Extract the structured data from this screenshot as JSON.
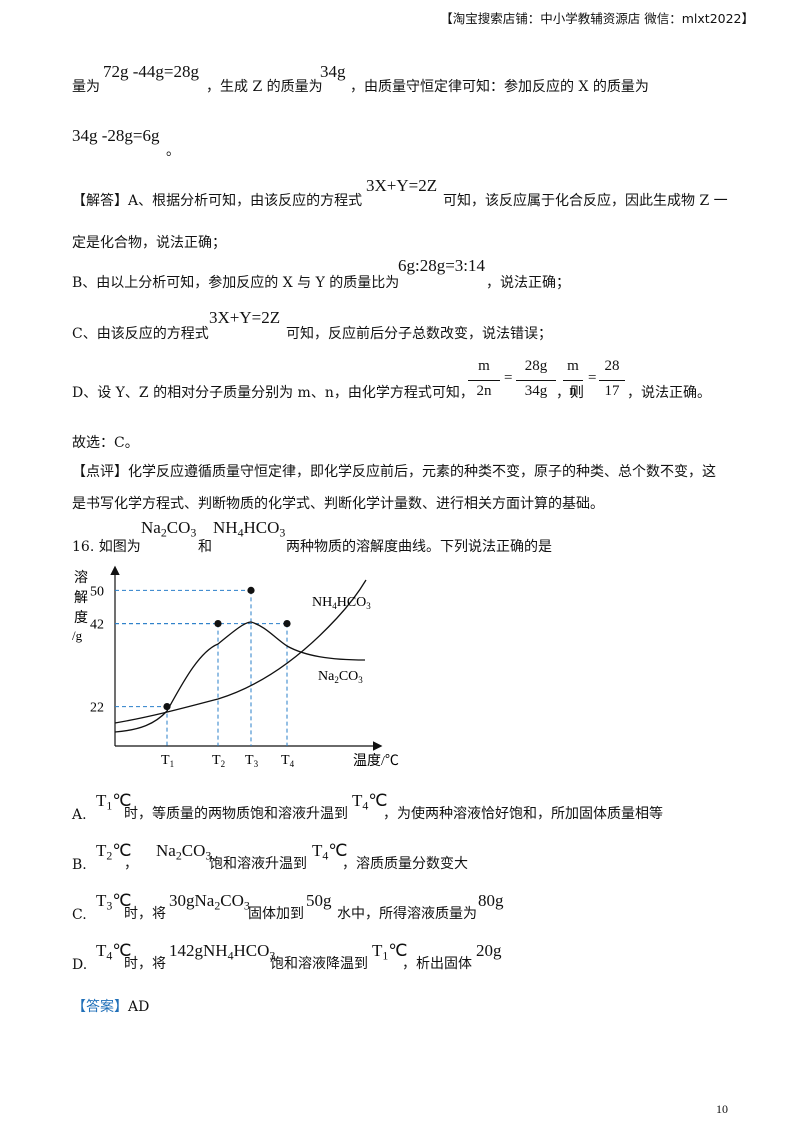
{
  "header": {
    "text": "【淘宝搜索店铺：中小学教辅资源店  微信：mlxt2022】"
  },
  "analysis": {
    "l1_pre": "量为",
    "l1_f1": "72g -44g=28g",
    "l1_mid": "，生成 Z 的质量为",
    "l1_f2": "34g",
    "l1_post": "，由质量守恒定律可知：参加反应的 X 的质量为",
    "l2_f": "34g -28g=6g",
    "l2_post": "。"
  },
  "solution": {
    "a_pre": "【解答】A、根据分析可知，由该反应的方程式",
    "a_eq": "3X+Y=2Z",
    "a_post": "可知，该反应属于化合反应，因此生成物 Z 一",
    "a_cont": "定是化合物，说法正确；",
    "b_pre": "B、由以上分析可知，参加反应的 X 与 Y 的质量比为",
    "b_eq": "6g:28g=3:14",
    "b_post": "，说法正确；",
    "c_pre": "C、由该反应的方程式",
    "c_eq": "3X+Y=2Z",
    "c_post": "可知，反应前后分子总数改变，说法错误；",
    "d_pre": "D、设 Y、Z 的相对分子质量分别为 m、n，由化学方程式可知，",
    "d_f1_num": "m",
    "d_f1_den": "2n",
    "d_eq": "=",
    "d_f2_num": "28g",
    "d_f2_den": "34g",
    "d_mid": "，则",
    "d_f3_num": "m",
    "d_f3_den": "n",
    "d_eq2": "=",
    "d_f4_num": "28",
    "d_f4_den": "17",
    "d_post": "，说法正确。",
    "choice": "故选：C。",
    "comment_tag": "【点评】",
    "comment_1": "化学反应遵循质量守恒定律，即化学反应前后，元素的种类不变，原子的种类、总个数不变，这",
    "comment_2": "是书写化学方程式、判断物质的化学式、判断化学计量数、进行相关方面计算的基础。"
  },
  "question": {
    "num": "16. 如图为",
    "s1": "Na",
    "s1_sub": "2",
    "s1_tail": "CO",
    "s1_sub2": "3",
    "and": "和",
    "s2": "NH",
    "s2_sub": "4",
    "s2_tail": "HCO",
    "s2_sub2": "3",
    "post": "两种物质的溶解度曲线。下列说法正确的是"
  },
  "chart_data": {
    "type": "line",
    "ylabel_chars": [
      "溶",
      "解",
      "度"
    ],
    "yunit": "/g",
    "xlabel": "温度/℃",
    "yticks": [
      22,
      42,
      50
    ],
    "xticks": [
      "T1",
      "T2",
      "T3",
      "T4"
    ],
    "series": [
      {
        "name": "NH4HCO3",
        "label_main": "NH",
        "label_sub": "4",
        "label_tail": "HCO",
        "label_sub2": "3"
      },
      {
        "name": "Na2CO3",
        "label_main": "Na",
        "label_sub": "2",
        "label_tail": "CO",
        "label_sub2": "3"
      }
    ],
    "points": [
      {
        "x": "T1",
        "y": 22
      },
      {
        "x": "T2",
        "y": 42
      },
      {
        "x": "T3",
        "y": 50
      },
      {
        "x": "T4",
        "y": 42
      }
    ]
  },
  "options": [
    {
      "letter": "A.",
      "t": "T",
      "tsub": "1",
      "deg": "℃",
      "a": "时，等质量的两物质饱和溶液升温到",
      "t2": "T",
      "t2sub": "4",
      "deg2": "℃",
      "b": "，为使两种溶液恰好饱和，所加固体质量相等"
    },
    {
      "letter": "B.",
      "t": "T",
      "tsub": "2",
      "deg": "℃",
      "a": "，",
      "chem": "Na",
      "chem_sub": "2",
      "chem_tail": "CO",
      "chem_sub2": "3",
      "c": "饱和溶液升温到",
      "t2": "T",
      "t2sub": "4",
      "deg2": "℃",
      "b": "，溶质质量分数变大"
    },
    {
      "letter": "C.",
      "t": "T",
      "tsub": "3",
      "deg": "℃",
      "a": "时，将",
      "chem": "30gNa",
      "chem_sub": "2",
      "chem_tail": "CO",
      "chem_sub2": "3",
      "c": "固体加到",
      "m": "50g",
      "d": "水中，所得溶液质量为",
      "m2": "80g"
    },
    {
      "letter": "D.",
      "t": "T",
      "tsub": "4",
      "deg": "℃",
      "a": "时，将",
      "chem": "142gNH",
      "chem_sub": "4",
      "chem_tail": "HCO",
      "chem_sub2": "3",
      "c": "饱和溶液降温到",
      "t2": "T",
      "t2sub": "1",
      "deg2": "℃",
      "b": "，析出固体",
      "m2": "20g"
    }
  ],
  "answer": {
    "tag": "【答案】",
    "value": "AD"
  },
  "page_number": "10"
}
